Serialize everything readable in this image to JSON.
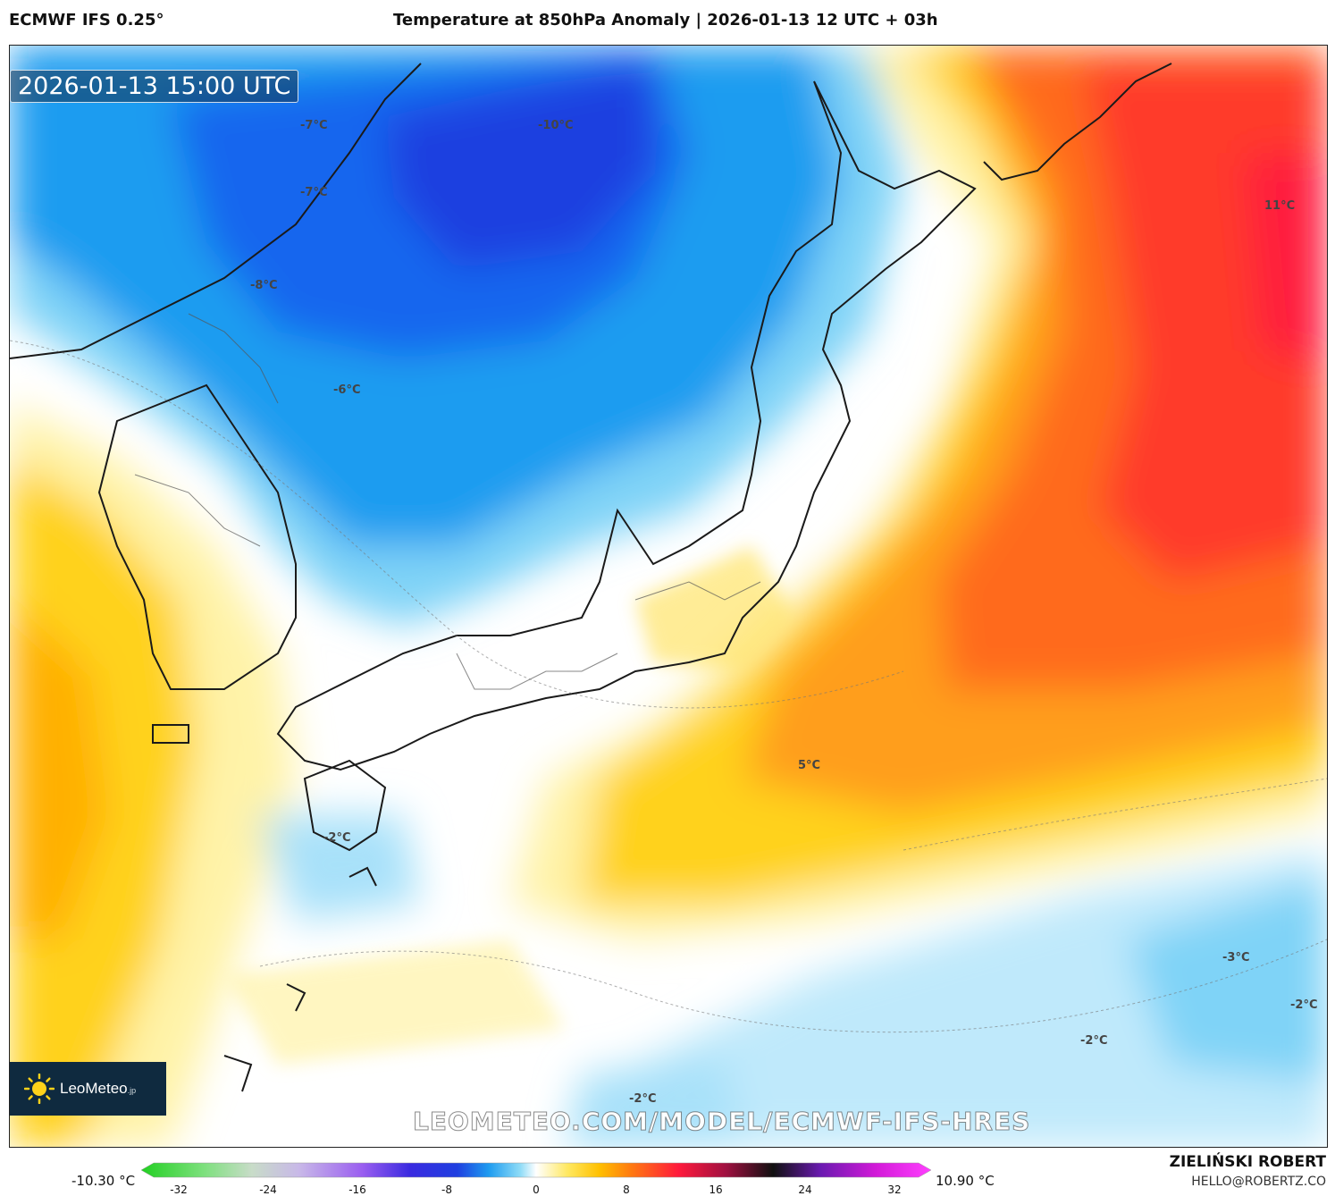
{
  "header": {
    "model": "ECMWF IFS 0.25°",
    "title": "Temperature at 850hPa Anomaly | 2026-01-13 12 UTC + 03h"
  },
  "map": {
    "valid_time": "2026-01-13 15:00 UTC",
    "labels": [
      {
        "text": "-7°C"
      },
      {
        "text": "-10°C"
      },
      {
        "text": "-7°C"
      },
      {
        "text": "-8°C"
      },
      {
        "text": "-6°C"
      },
      {
        "text": "11°C"
      },
      {
        "text": "5°C"
      },
      {
        "text": "-2°C"
      },
      {
        "text": "-3°C"
      },
      {
        "text": "-2°C"
      },
      {
        "text": "-2°C"
      },
      {
        "text": "-2°C"
      }
    ],
    "watermark": "LEOMETEO.COM/MODEL/ECMWF-IFS-HRES",
    "logo": {
      "name": "LeoMeteo",
      "suffix": ".jp"
    }
  },
  "colorbar": {
    "min_label": "-10.30 °C",
    "max_label": "10.90 °C",
    "ticks": [
      "-32",
      "-24",
      "-16",
      "-8",
      "0",
      "8",
      "16",
      "24",
      "32"
    ]
  },
  "footer": {
    "author": "ZIELIŃSKI ROBERT",
    "email": "HELLO@ROBERTZ.CO"
  },
  "colors": {
    "cold_deep": "#1f3fe0",
    "cold": "#1e9cf0",
    "cool": "#7fd3f7",
    "neutral": "#ffffff",
    "warm_light": "#fff3a8",
    "warm": "#ffd21a",
    "orange": "#ff8c1a",
    "hot": "#ff3a2a",
    "hottest": "#ff1a3c"
  }
}
